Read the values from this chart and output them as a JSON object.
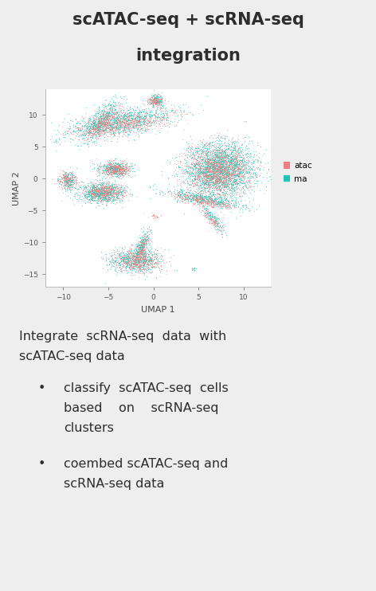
{
  "title_line1": "scATAC-seq + scRNA-seq",
  "title_line2": "integration",
  "title_fontsize": 15,
  "title_color": "#2d2d2d",
  "bg_color": "#eeeeee",
  "plot_bg": "#ffffff",
  "atac_color": "#f08080",
  "rna_color": "#20c5b5",
  "xlabel": "UMAP 1",
  "ylabel": "UMAP 2",
  "xlim": [
    -12,
    13
  ],
  "ylim": [
    -17,
    14
  ],
  "xticks": [
    -10,
    -5,
    0,
    5,
    10
  ],
  "yticks": [
    -15,
    -10,
    -5,
    0,
    5,
    10
  ],
  "legend_labels": [
    "atac",
    "ma"
  ],
  "text_fontsize": 11.5,
  "seed": 42
}
